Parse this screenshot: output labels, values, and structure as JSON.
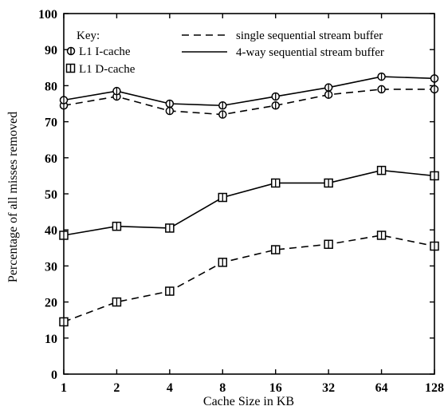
{
  "chart_data": {
    "type": "line",
    "xlabel": "Cache Size in KB",
    "ylabel": "Percentage of all misses removed",
    "categories": [
      "1",
      "2",
      "4",
      "8",
      "16",
      "32",
      "64",
      "128"
    ],
    "ylim": [
      0,
      100
    ],
    "yticks": [
      "0",
      "10",
      "20",
      "30",
      "40",
      "50",
      "60",
      "70",
      "80",
      "90",
      "100"
    ],
    "grid": false,
    "legend": {
      "title": "Key:",
      "markers": [
        {
          "symbol": "circle",
          "label": "L1 I-cache"
        },
        {
          "symbol": "square",
          "label": "L1 D-cache"
        }
      ],
      "lines": [
        {
          "style": "dashed",
          "label": "single sequential stream buffer"
        },
        {
          "style": "solid",
          "label": "4-way sequential stream buffer"
        }
      ]
    },
    "series": [
      {
        "cache": "L1 I-cache",
        "buffer": "single sequential stream buffer",
        "marker": "circle",
        "style": "dashed",
        "values": [
          74.5,
          77.0,
          73.0,
          72.0,
          74.5,
          77.5,
          79.0,
          79.0
        ]
      },
      {
        "cache": "L1 I-cache",
        "buffer": "4-way sequential stream buffer",
        "marker": "circle",
        "style": "solid",
        "values": [
          76.0,
          78.5,
          75.0,
          74.5,
          77.0,
          79.5,
          82.5,
          82.0
        ]
      },
      {
        "cache": "L1 D-cache",
        "buffer": "single sequential stream buffer",
        "marker": "square",
        "style": "dashed",
        "values": [
          14.5,
          20.0,
          23.0,
          31.0,
          34.5,
          36.0,
          38.5,
          35.5
        ]
      },
      {
        "cache": "L1 D-cache",
        "buffer": "4-way sequential stream buffer",
        "marker": "square",
        "style": "solid",
        "values": [
          38.5,
          41.0,
          40.5,
          49.0,
          53.0,
          53.0,
          56.5,
          55.0
        ]
      }
    ]
  }
}
